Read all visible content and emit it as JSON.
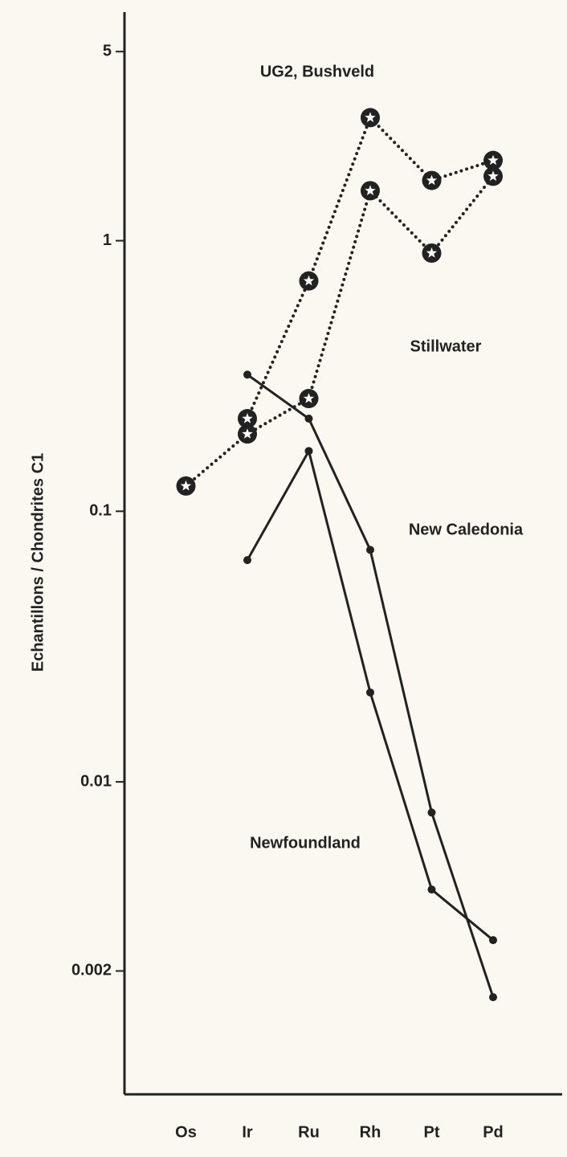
{
  "chart_data": {
    "type": "line",
    "y_label": "Echantillons / Chondrites C1",
    "categories": [
      "Os",
      "Ir",
      "Ru",
      "Rh",
      "Pt",
      "Pd"
    ],
    "log_scale": true,
    "ylim": [
      0.0007,
      7
    ],
    "yticks": [
      5,
      1,
      0.1,
      0.01,
      0.002
    ],
    "series": [
      {
        "name": "UG2, Bushveld",
        "color": "#222222",
        "line_style": "dotted",
        "marker": "star",
        "values": [
          null,
          0.22,
          0.71,
          2.85,
          1.67,
          1.98
        ]
      },
      {
        "name": "Stillwater",
        "color": "#222222",
        "line_style": "dotted",
        "marker": "star",
        "values": [
          0.124,
          0.193,
          0.261,
          1.53,
          0.9,
          1.73
        ]
      },
      {
        "name": "New Caledonia",
        "color": "#222222",
        "line_style": "solid",
        "marker": "dot",
        "values": [
          null,
          0.32,
          0.22,
          0.072,
          0.0077,
          0.0016
        ]
      },
      {
        "name": "Newfoundland",
        "color": "#222222",
        "line_style": "solid",
        "marker": "dot",
        "values": [
          null,
          0.066,
          0.167,
          0.0214,
          0.004,
          0.0026
        ]
      }
    ]
  }
}
